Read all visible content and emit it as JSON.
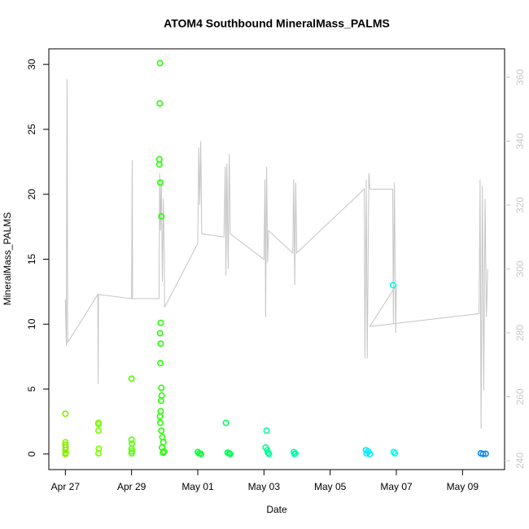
{
  "chart_data": {
    "type": "scatter",
    "title": "ATOM4 Southbound MineralMass_PALMS",
    "x_label": "Date",
    "y_label": "MineralMass_PALMS",
    "xlim": [
      116.5,
      130.27
    ],
    "xticks": [
      {
        "value": 117,
        "label": "Apr 27"
      },
      {
        "value": 119,
        "label": "Apr 29"
      },
      {
        "value": 121,
        "label": "May 01"
      },
      {
        "value": 123,
        "label": "May 03"
      },
      {
        "value": 125,
        "label": "May 05"
      },
      {
        "value": 127,
        "label": "May 07"
      },
      {
        "value": 129,
        "label": "May 09"
      }
    ],
    "ylim": [
      -1.2,
      31.2
    ],
    "yticks": [
      0,
      5,
      10,
      15,
      20,
      25,
      30
    ],
    "y2lim": [
      237.2,
      368.9
    ],
    "y2ticks": [
      240,
      260,
      280,
      300,
      320,
      340,
      360
    ],
    "y2_color": "#c8c8c8",
    "series": [
      {
        "type": "line",
        "axis": "y2",
        "color": "#c4c4c4",
        "x": [
          117.0,
          117.03,
          117.05,
          117.07,
          117.98,
          117.99,
          118.0,
          119.0,
          119.02,
          119.03,
          119.83,
          119.85,
          119.87,
          119.9,
          119.93,
          119.96,
          119.99,
          120.0,
          121.0,
          121.03,
          121.06,
          121.09,
          121.12,
          121.79,
          121.83,
          121.85,
          121.88,
          121.92,
          121.95,
          121.98,
          123.0,
          123.03,
          123.05,
          123.08,
          123.11,
          123.14,
          123.87,
          123.9,
          123.93,
          123.96,
          123.99,
          126.03,
          126.05,
          126.09,
          126.12,
          126.17,
          126.2,
          126.89,
          126.91,
          126.94,
          126.98,
          127.0,
          126.2,
          129.5,
          129.53,
          129.56,
          129.6,
          129.64,
          129.68,
          129.72,
          129.76
        ],
        "values": [
          290.4,
          276,
          359.5,
          277,
          292,
          264,
          292,
          290.7,
          334,
          290.7,
          290.7,
          330,
          312,
          328,
          296,
          322,
          303,
          288,
          308,
          338,
          320,
          340,
          311,
          310,
          332,
          298,
          333,
          300,
          336,
          311,
          303,
          328,
          285,
          332,
          302,
          312,
          305,
          328,
          295,
          327,
          305,
          325,
          272,
          328,
          272,
          330,
          325,
          325,
          283,
          327,
          280,
          295,
          282,
          286,
          328,
          250,
          326,
          262,
          322,
          285,
          300
        ]
      },
      {
        "type": "scatter",
        "x": [
          117.0,
          117.0,
          117.0,
          117.01,
          117.0,
          117.01,
          117.0,
          118.0,
          118.0,
          118.0,
          118.01,
          118.0,
          119.0,
          119.0,
          119.01,
          119.0,
          119.01,
          119.0,
          119.86,
          119.85,
          119.84,
          119.84,
          119.87,
          119.9,
          119.88,
          119.86,
          119.88,
          119.87,
          119.9,
          119.91,
          119.89,
          119.88,
          119.86,
          119.87,
          119.9,
          119.93,
          119.96,
          119.92,
          119.98,
          119.95,
          121.0,
          121.05,
          121.1,
          121.85,
          121.9,
          121.95,
          121.98,
          123.08,
          123.05,
          123.1,
          123.12,
          123.15,
          123.9,
          123.95,
          123.92,
          126.08,
          126.15,
          126.1,
          126.2,
          126.9,
          126.92,
          126.96,
          129.55,
          129.62,
          129.7
        ],
        "values": [
          3.1,
          0.9,
          0.7,
          0.5,
          0.3,
          0.1,
          0,
          2.4,
          2.3,
          1.8,
          0.4,
          0.05,
          5.8,
          1.1,
          0.8,
          0.4,
          0.2,
          0.05,
          30.1,
          27.0,
          22.7,
          22.3,
          20.9,
          18.3,
          10.1,
          9.3,
          8.5,
          7.0,
          5.1,
          4.5,
          4.1,
          3.3,
          2.9,
          2.4,
          1.8,
          1.3,
          0.9,
          0.5,
          0.2,
          0.1,
          0.15,
          0.05,
          0,
          2.4,
          0.1,
          0.05,
          0,
          1.8,
          0.5,
          0.3,
          0.1,
          0,
          0.15,
          0.05,
          0,
          0.3,
          0.2,
          0.05,
          0,
          13.0,
          0.15,
          0.05,
          0.05,
          0,
          0.02
        ],
        "colors": [
          "#88ee00",
          "#88ee00",
          "#88ee00",
          "#88ee00",
          "#88ee00",
          "#88ee00",
          "#88ee00",
          "#77ff00",
          "#77ff00",
          "#77ff00",
          "#77ff00",
          "#77ff00",
          "#55ff00",
          "#55ff00",
          "#55ff00",
          "#55ff00",
          "#55ff00",
          "#55ff00",
          "#22ff00",
          "#22ff00",
          "#22ff00",
          "#22ff00",
          "#22ff00",
          "#22ff00",
          "#22ff00",
          "#22ff00",
          "#22ff00",
          "#22ff00",
          "#22ff00",
          "#22ff00",
          "#22ff00",
          "#22ff00",
          "#22ff00",
          "#22ff00",
          "#22ff00",
          "#22ff00",
          "#22ff00",
          "#22ff00",
          "#22ff00",
          "#22ff00",
          "#00ff33",
          "#00ff33",
          "#00ff33",
          "#00ff55",
          "#00ff55",
          "#00ff55",
          "#00ff55",
          "#00ff99",
          "#00ff99",
          "#00ff99",
          "#00ff99",
          "#00ff99",
          "#00ffaa",
          "#00ffaa",
          "#00ffaa",
          "#00eeff",
          "#00eeff",
          "#00eeff",
          "#00eeff",
          "#00ffee",
          "#00ffee",
          "#00ffee",
          "#1188ee",
          "#1188ee",
          "#1188ee"
        ]
      }
    ]
  }
}
